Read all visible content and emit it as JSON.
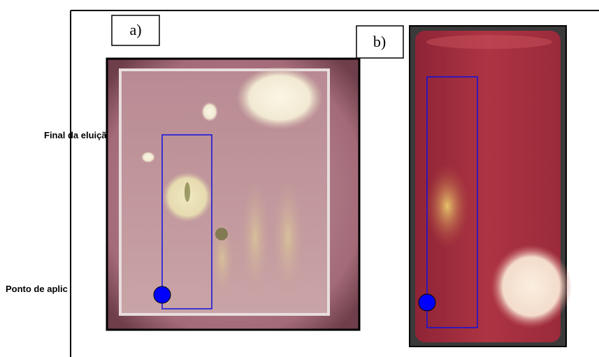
{
  "panels": [
    {
      "label": "a)"
    },
    {
      "label": "b)"
    }
  ],
  "annotations": {
    "elution_end": "Final da eluição",
    "application_point": "Ponto de aplic"
  }
}
